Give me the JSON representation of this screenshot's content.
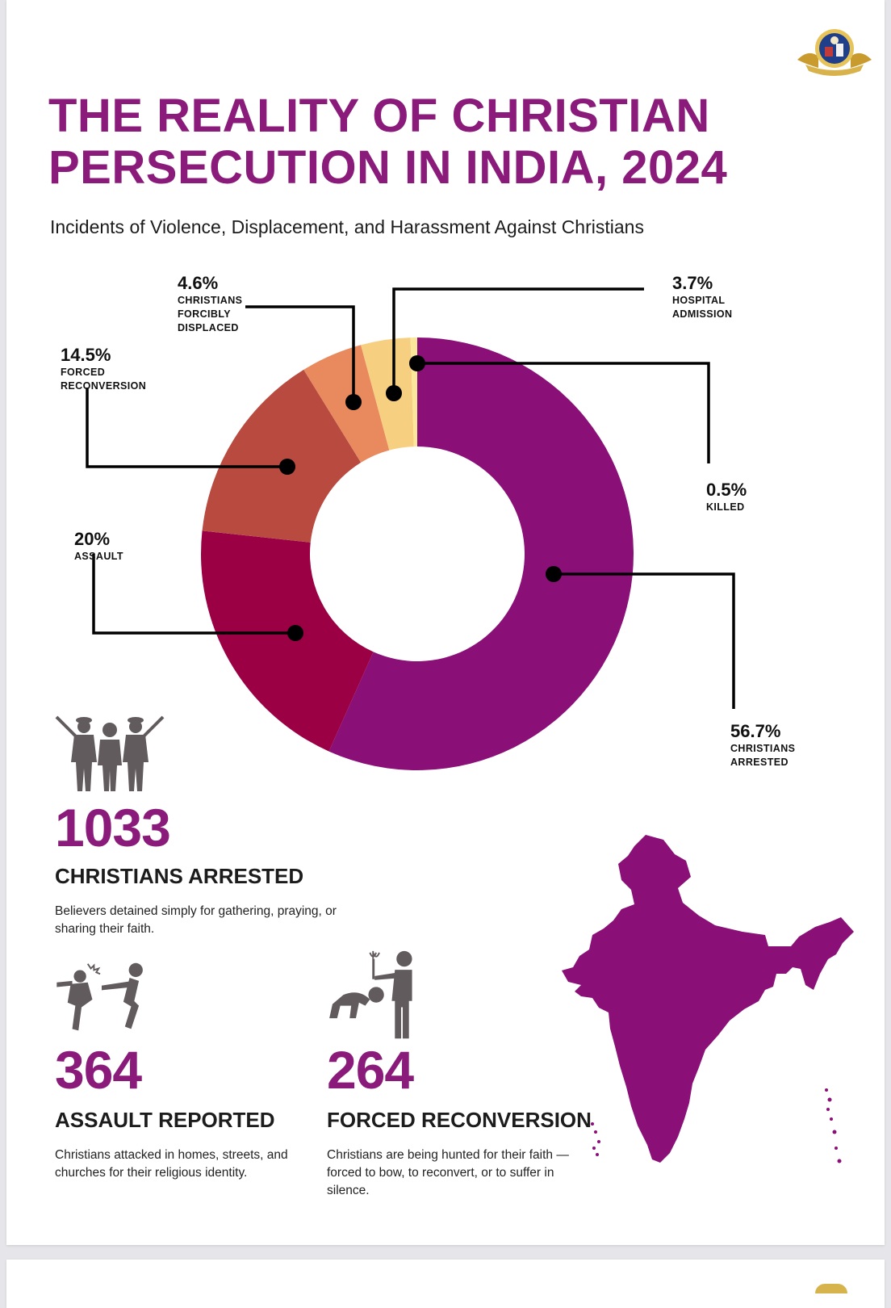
{
  "header": {
    "title": "THE REALITY OF CHRISTIAN PERSECUTION IN INDIA, 2024",
    "subtitle": "Incidents of Violence, Displacement, and Harassment Against Christians"
  },
  "colors": {
    "accent": "#8a1b7a",
    "arrested": "#8a1078",
    "assault": "#9b0045",
    "reconversion": "#b84a40",
    "displaced": "#e8895e",
    "hospital": "#f7cf80",
    "killed": "#fbe79a",
    "icon": "#625b5e"
  },
  "chart_data": {
    "type": "pie",
    "title": "",
    "donut": true,
    "series": [
      {
        "name": "CHRISTIANS ARRESTED",
        "value": 56.7,
        "value_label": "56.7%"
      },
      {
        "name": "ASSAULT",
        "value": 20,
        "value_label": "20%"
      },
      {
        "name": "FORCED RECONVERSION",
        "value": 14.5,
        "value_label": "14.5%"
      },
      {
        "name": "CHRISTIANS FORCIBLY DISPLACED",
        "value": 4.6,
        "value_label": "4.6%"
      },
      {
        "name": "HOSPITAL ADMISSION",
        "value": 3.7,
        "value_label": "3.7%"
      },
      {
        "name": "KILLED",
        "value": 0.5,
        "value_label": "0.5%"
      }
    ]
  },
  "labels": {
    "displaced": {
      "pct": "4.6%",
      "cap": "CHRISTIANS\nFORCIBLY\nDISPLACED"
    },
    "hospital": {
      "pct": "3.7%",
      "cap": "HOSPITAL\nADMISSION"
    },
    "reconversion": {
      "pct": "14.5%",
      "cap": "FORCED\nRECONVERSION"
    },
    "killed": {
      "pct": "0.5%",
      "cap": "KILLED"
    },
    "assault": {
      "pct": "20%",
      "cap": "ASSAULT"
    },
    "arrested": {
      "pct": "56.7%",
      "cap": "CHRISTIANS\nARRESTED"
    }
  },
  "stats": {
    "arrested": {
      "number": "1033",
      "title": "CHRISTIANS ARRESTED",
      "desc": "Believers detained simply for gathering, praying, or sharing their faith."
    },
    "assault": {
      "number": "364",
      "title": "ASSAULT REPORTED",
      "desc": "Christians attacked in homes, streets, and churches for their religious identity."
    },
    "reconversion": {
      "number": "264",
      "title": "FORCED RECONVERSION",
      "desc": "Christians are being hunted for their faith — forced to bow, to reconvert, or to suffer in silence."
    }
  },
  "icons": {
    "arrest": "police-arrest-icon",
    "assault": "assault-icon",
    "reconversion": "forced-bowing-icon",
    "map": "india-map",
    "seal": "emblem-seal-icon"
  }
}
